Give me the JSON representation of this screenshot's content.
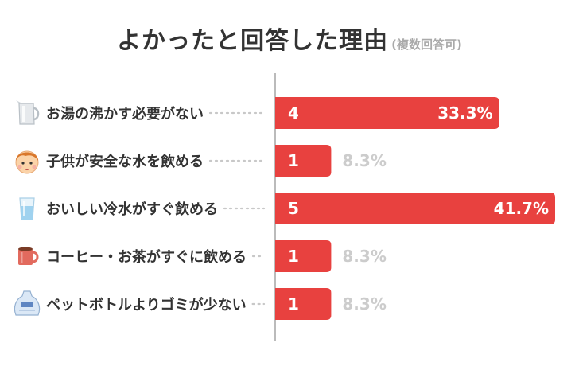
{
  "title": "よかったと回答した理由",
  "subtitle": "(複数回答可)",
  "colors": {
    "bar": "#e8413f",
    "axis": "#bbbbbb",
    "outside_pct": "#cccccc"
  },
  "chart_data": {
    "type": "bar",
    "orientation": "horizontal",
    "title": "よかったと回答した理由",
    "subtitle": "(複数回答可)",
    "categories": [
      "お湯の沸かす必要がない",
      "子供が安全な水を飲める",
      "おいしい冷水がすぐ飲める",
      "コーヒー・お茶がすぐに飲める",
      "ペットボトルよりゴミが少ない"
    ],
    "icons": [
      "kettle-icon",
      "child-face-icon",
      "water-glass-icon",
      "coffee-mug-icon",
      "plastic-bag-icon"
    ],
    "values": [
      4,
      1,
      5,
      1,
      1
    ],
    "percent_labels": [
      "33.3%",
      "8.3%",
      "41.7%",
      "8.3%",
      "8.3%"
    ],
    "xlim": [
      0,
      5
    ],
    "grid": false,
    "legend": "none"
  }
}
